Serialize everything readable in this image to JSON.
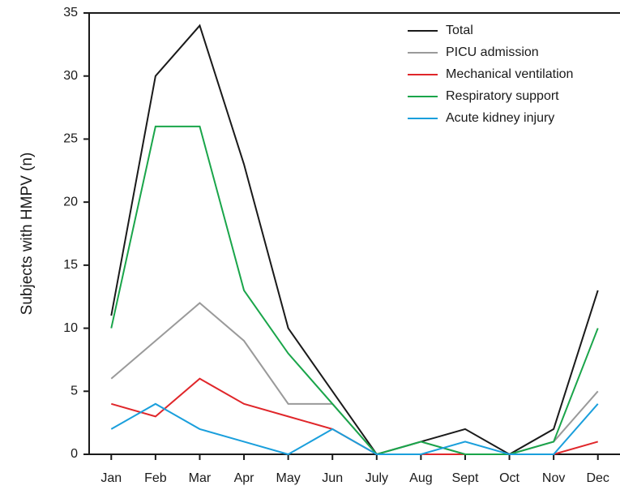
{
  "chart_data": {
    "type": "line",
    "y_label": "Subjects with HMPV (n)",
    "categories": [
      "Jan",
      "Feb",
      "Mar",
      "Apr",
      "May",
      "Jun",
      "July",
      "Aug",
      "Sept",
      "Oct",
      "Nov",
      "Dec"
    ],
    "series": [
      {
        "name": "Total",
        "color": "#1a1a1a",
        "values": [
          11,
          30,
          34,
          23,
          10,
          5,
          0,
          1,
          2,
          0,
          2,
          13
        ]
      },
      {
        "name": "PICU admission",
        "color": "#9a9a9a",
        "values": [
          6,
          9,
          12,
          9,
          4,
          4,
          0,
          1,
          0,
          0,
          1,
          5
        ]
      },
      {
        "name": "Mechanical ventilation",
        "color": "#e0262a",
        "values": [
          4,
          3,
          6,
          4,
          3,
          2,
          0,
          0,
          0,
          0,
          0,
          1
        ]
      },
      {
        "name": "Respiratory support",
        "color": "#1aa54a",
        "values": [
          10,
          26,
          26,
          13,
          8,
          4,
          0,
          1,
          0,
          0,
          1,
          10
        ]
      },
      {
        "name": "Acute kidney injury",
        "color": "#1a9fdc",
        "values": [
          2,
          4,
          2,
          1,
          0,
          2,
          0,
          0,
          1,
          0,
          0,
          4
        ]
      }
    ],
    "ylim": [
      0,
      35
    ],
    "yticks": [
      0,
      5,
      10,
      15,
      20,
      25,
      30,
      35
    ],
    "grid": false,
    "legend": "top-right"
  }
}
